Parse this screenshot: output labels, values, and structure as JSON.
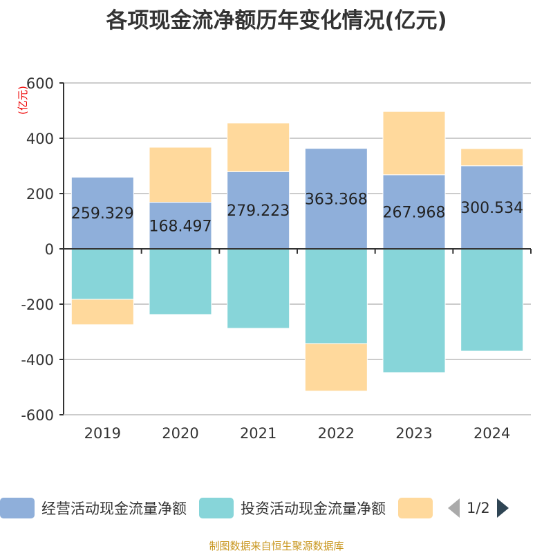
{
  "title": "各项现金流净额历年变化情况(亿元)",
  "source": "制图数据来自恒生聚源数据库",
  "legend_pager": "1/2",
  "chart_data": {
    "type": "bar",
    "stacked": true,
    "title": "各项现金流净额历年变化情况(亿元)",
    "ylabel": "(亿元)",
    "ylim": [
      -600,
      600
    ],
    "yticks": [
      "600",
      "400",
      "200",
      "0",
      "-200",
      "-400",
      "-600"
    ],
    "grid": true,
    "legend_placement": "bottom",
    "categories": [
      "2019",
      "2020",
      "2021",
      "2022",
      "2023",
      "2024"
    ],
    "series": [
      {
        "name": "经营活动现金流量净额",
        "color": "#8fafda",
        "values": [
          259.329,
          168.497,
          279.223,
          363.368,
          267.968,
          300.534
        ],
        "labels": [
          "259.329",
          "168.497",
          "279.223",
          "363.368",
          "267.968",
          "300.534"
        ]
      },
      {
        "name": "投资活动现金流量净额",
        "color": "#87d5d9",
        "values": [
          -182.5,
          -237.5,
          -287.5,
          -342.5,
          -447.5,
          -370
        ]
      },
      {
        "color": "#ffd99c",
        "values": [
          -92,
          199,
          176,
          -172,
          229,
          62
        ]
      }
    ]
  }
}
